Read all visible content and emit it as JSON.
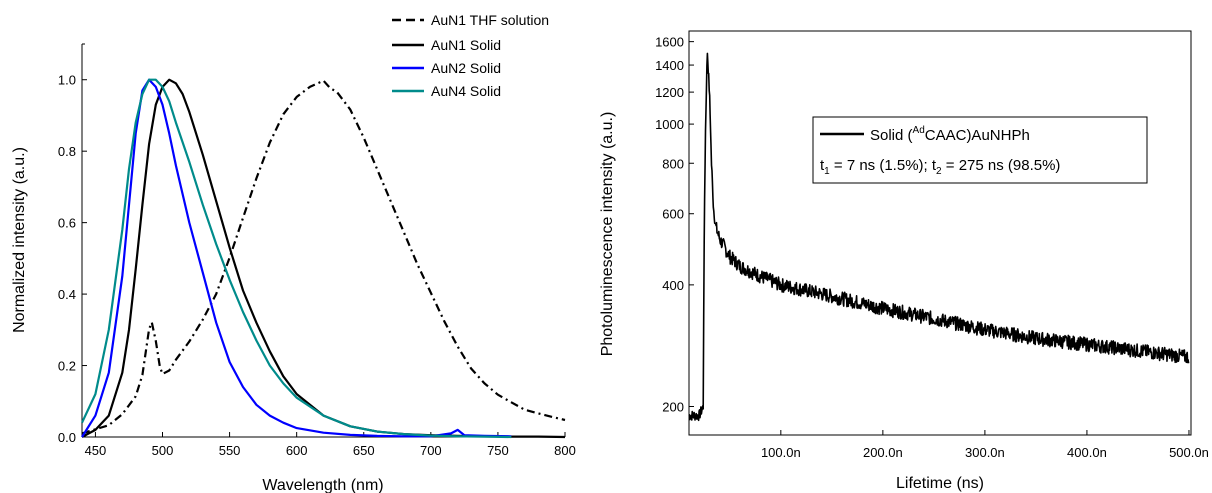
{
  "chart_data": [
    {
      "type": "line",
      "xlabel": "Wavelength (nm)",
      "ylabel": "Normalized intensity (a.u.)",
      "xlim": [
        440,
        800
      ],
      "ylim": [
        0,
        1.1
      ],
      "x_ticks": [
        "450",
        "500",
        "550",
        "600",
        "650",
        "700",
        "750",
        "800"
      ],
      "y_ticks": [
        "0.0",
        "0.2",
        "0.4",
        "0.6",
        "0.8",
        "1.0"
      ],
      "legend_position": "top-right",
      "series": [
        {
          "name": "AuN1 THF solution",
          "color": "#000000",
          "style": "dash-dot",
          "x": [
            440,
            450,
            460,
            470,
            480,
            485,
            490,
            492,
            495,
            498,
            500,
            505,
            510,
            520,
            530,
            540,
            550,
            560,
            570,
            580,
            590,
            600,
            610,
            615,
            620,
            625,
            630,
            640,
            650,
            660,
            670,
            680,
            690,
            700,
            710,
            720,
            730,
            740,
            750,
            760,
            770,
            780,
            790,
            800
          ],
          "y": [
            0.01,
            0.02,
            0.03,
            0.06,
            0.11,
            0.17,
            0.3,
            0.32,
            0.27,
            0.2,
            0.18,
            0.19,
            0.22,
            0.27,
            0.33,
            0.4,
            0.5,
            0.61,
            0.72,
            0.82,
            0.9,
            0.95,
            0.98,
            0.99,
            1.0,
            0.98,
            0.97,
            0.92,
            0.84,
            0.75,
            0.66,
            0.57,
            0.48,
            0.4,
            0.32,
            0.25,
            0.19,
            0.15,
            0.12,
            0.1,
            0.08,
            0.07,
            0.06,
            0.05
          ]
        },
        {
          "name": "AuN1 Solid",
          "color": "#000000",
          "style": "solid",
          "x": [
            440,
            450,
            460,
            470,
            475,
            480,
            485,
            490,
            495,
            500,
            505,
            510,
            515,
            520,
            530,
            540,
            550,
            560,
            570,
            580,
            590,
            600,
            620,
            640,
            660,
            680,
            700,
            720,
            740,
            760,
            780,
            800
          ],
          "y": [
            0.0,
            0.02,
            0.06,
            0.18,
            0.3,
            0.47,
            0.65,
            0.82,
            0.93,
            0.98,
            1.0,
            0.99,
            0.96,
            0.91,
            0.79,
            0.66,
            0.53,
            0.41,
            0.32,
            0.24,
            0.17,
            0.12,
            0.06,
            0.03,
            0.015,
            0.008,
            0.005,
            0.003,
            0.002,
            0.001,
            0.001,
            0.0
          ]
        },
        {
          "name": "AuN2 Solid",
          "color": "#0000ff",
          "style": "solid",
          "x": [
            440,
            450,
            460,
            470,
            475,
            480,
            485,
            490,
            495,
            500,
            505,
            510,
            520,
            530,
            540,
            550,
            560,
            570,
            580,
            590,
            600,
            620,
            640,
            660,
            680,
            700,
            715,
            720,
            725,
            740,
            760
          ],
          "y": [
            0.0,
            0.06,
            0.18,
            0.45,
            0.65,
            0.85,
            0.97,
            1.0,
            0.98,
            0.93,
            0.85,
            0.76,
            0.6,
            0.46,
            0.32,
            0.21,
            0.14,
            0.09,
            0.06,
            0.04,
            0.025,
            0.012,
            0.006,
            0.003,
            0.002,
            0.002,
            0.01,
            0.02,
            0.005,
            0.003,
            0.002
          ]
        },
        {
          "name": "AuN4 Solid",
          "color": "#008b8b",
          "style": "solid",
          "x": [
            440,
            450,
            460,
            470,
            475,
            480,
            485,
            490,
            495,
            500,
            505,
            510,
            520,
            530,
            540,
            550,
            560,
            570,
            580,
            590,
            600,
            620,
            640,
            660,
            680,
            700,
            720,
            740,
            760
          ],
          "y": [
            0.04,
            0.12,
            0.3,
            0.58,
            0.75,
            0.88,
            0.96,
            1.0,
            1.0,
            0.98,
            0.94,
            0.88,
            0.77,
            0.65,
            0.54,
            0.44,
            0.35,
            0.27,
            0.2,
            0.15,
            0.11,
            0.06,
            0.03,
            0.015,
            0.008,
            0.004,
            0.002,
            0.001,
            0.0
          ]
        }
      ]
    },
    {
      "type": "line",
      "xlabel": "Lifetime (ns)",
      "ylabel": "Photoluminescence intensity (a.u.)",
      "xlim": [
        10,
        502
      ],
      "ylim": [
        170,
        1700
      ],
      "y_scale": "log",
      "x_tick_values": [
        100,
        200,
        300,
        400,
        500
      ],
      "x_ticks": [
        "100.0n",
        "200.0n",
        "300.0n",
        "400.0n",
        "500.0n"
      ],
      "y_tick_values": [
        200,
        400,
        600,
        800,
        1000,
        1200,
        1400,
        1600
      ],
      "y_ticks": [
        "200",
        "400",
        "600",
        "800",
        "1000",
        "1200",
        "1400",
        "1600"
      ],
      "legend_position": "top-right",
      "legend": {
        "name_prefix": "Solid (",
        "name_superscript": "Ad",
        "name_suffix": "CAAC)AuNHPh",
        "t1_sym": "t",
        "t1_sub": "1",
        "t1_text": " = 7 ns (1.5%); ",
        "t2_sym": "t",
        "t2_sub": "2",
        "t2_text": " = 275 ns (98.5%)"
      },
      "series": [
        {
          "name": "Solid (AdCAAC)AuNHPh",
          "color": "#000000",
          "x": [
            10,
            15,
            20,
            24,
            26,
            28,
            30,
            32,
            34,
            36,
            40,
            50,
            60,
            80,
            100,
            150,
            200,
            250,
            300,
            350,
            400,
            450,
            500
          ],
          "y": [
            190,
            190,
            190,
            200,
            900,
            1510,
            1200,
            800,
            620,
            560,
            520,
            470,
            445,
            420,
            400,
            375,
            350,
            330,
            310,
            295,
            285,
            275,
            265
          ],
          "noise_pct": 4
        }
      ]
    }
  ]
}
